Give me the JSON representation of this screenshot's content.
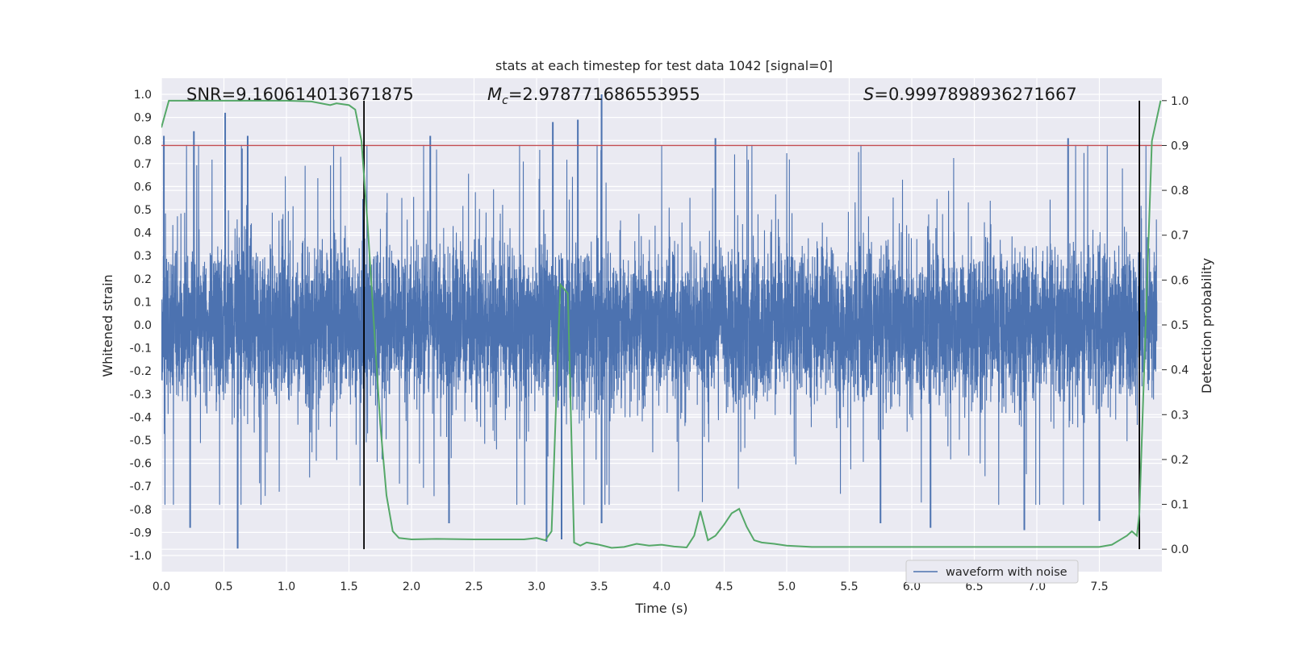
{
  "chart_data": {
    "type": "line",
    "title": "stats at each timestep for test data 1042 [signal=0]",
    "xlabel": "Time (s)",
    "ylabel_left": "Whitened strain",
    "ylabel_right": "Detection probability",
    "xlim": [
      0.0,
      8.0
    ],
    "ylim_left": [
      -1.07,
      1.07
    ],
    "ylim_right": [
      -0.05,
      1.05
    ],
    "x_ticks": [
      0.0,
      0.5,
      1.0,
      1.5,
      2.0,
      2.5,
      3.0,
      3.5,
      4.0,
      4.5,
      5.0,
      5.5,
      6.0,
      6.5,
      7.0,
      7.5
    ],
    "x_tick_labels": [
      "0.0",
      "0.5",
      "1.0",
      "1.5",
      "2.0",
      "2.5",
      "3.0",
      "3.5",
      "4.0",
      "4.5",
      "5.0",
      "5.5",
      "6.0",
      "6.5",
      "7.0",
      "7.5"
    ],
    "y_left_ticks": [
      1.0,
      0.9,
      0.8,
      0.7,
      0.6,
      0.5,
      0.4,
      0.3,
      0.2,
      0.1,
      0.0,
      -0.1,
      -0.2,
      -0.3,
      -0.4,
      -0.5,
      -0.6,
      -0.7,
      -0.8,
      -0.9,
      -1.0
    ],
    "y_left_tick_labels": [
      "1.0",
      "0.9",
      "0.8",
      "0.7",
      "0.6",
      "0.5",
      "0.4",
      "0.3",
      "0.2",
      "0.1",
      "0.0",
      "-0.1",
      "-0.2",
      "-0.3",
      "-0.4",
      "-0.5",
      "-0.6",
      "-0.7",
      "-0.8",
      "-0.9",
      "-1.0"
    ],
    "y_right_ticks": [
      1.0,
      0.9,
      0.8,
      0.7,
      0.6,
      0.5,
      0.4,
      0.3,
      0.2,
      0.1,
      0.0
    ],
    "y_right_tick_labels": [
      "1.0",
      "0.9",
      "0.8",
      "0.7",
      "0.6",
      "0.5",
      "0.4",
      "0.3",
      "0.2",
      "0.1",
      "0.0"
    ],
    "annotations": {
      "snr": "SNR=9.160614013671875",
      "mc": "=2.978771686553955",
      "mc_symbol": "M",
      "mc_subscript": "c",
      "s": "=0.9997898936271667",
      "s_symbol": "S"
    },
    "threshold": {
      "axis": "right",
      "value": 0.9,
      "color": "#c44e52"
    },
    "vlines": [
      1.62,
      7.82
    ],
    "vline_range_right": [
      0.0,
      1.0
    ],
    "legend": {
      "label": "waveform with noise",
      "location": "lower-right",
      "color": "#4c72b0"
    },
    "series": [
      {
        "name": "waveform with noise",
        "axis": "left",
        "color": "#4c72b0",
        "style": "dense-noise",
        "samples": 8000,
        "typical_range": [
          -0.4,
          0.4
        ],
        "spike_peaks": [
          {
            "x": 0.02,
            "y": 0.82
          },
          {
            "x": 0.26,
            "y": 0.84
          },
          {
            "x": 0.51,
            "y": 0.92
          },
          {
            "x": 0.69,
            "y": 0.82
          },
          {
            "x": 2.15,
            "y": 0.82
          },
          {
            "x": 3.13,
            "y": 0.88
          },
          {
            "x": 3.33,
            "y": 0.89
          },
          {
            "x": 3.52,
            "y": 1.0
          },
          {
            "x": 4.43,
            "y": 0.81
          },
          {
            "x": 7.25,
            "y": 0.81
          },
          {
            "x": 0.23,
            "y": -0.88
          },
          {
            "x": 0.61,
            "y": -0.97
          },
          {
            "x": 2.3,
            "y": -0.86
          },
          {
            "x": 3.08,
            "y": -0.94
          },
          {
            "x": 3.2,
            "y": -0.93
          },
          {
            "x": 3.52,
            "y": -0.86
          },
          {
            "x": 5.75,
            "y": -0.86
          },
          {
            "x": 6.15,
            "y": -0.88
          },
          {
            "x": 6.9,
            "y": -0.89
          },
          {
            "x": 7.5,
            "y": -0.85
          }
        ]
      },
      {
        "name": "detection probability",
        "axis": "right",
        "color": "#55a868",
        "x": [
          0.0,
          0.06,
          0.2,
          0.4,
          0.6,
          0.8,
          1.0,
          1.2,
          1.35,
          1.4,
          1.5,
          1.55,
          1.6,
          1.65,
          1.7,
          1.75,
          1.8,
          1.85,
          1.9,
          2.0,
          2.2,
          2.5,
          2.8,
          2.9,
          3.0,
          3.07,
          3.12,
          3.19,
          3.25,
          3.3,
          3.35,
          3.4,
          3.5,
          3.6,
          3.7,
          3.8,
          3.9,
          4.0,
          4.1,
          4.2,
          4.26,
          4.31,
          4.37,
          4.43,
          4.5,
          4.56,
          4.62,
          4.68,
          4.74,
          4.8,
          4.9,
          5.0,
          5.2,
          5.5,
          6.0,
          6.5,
          7.0,
          7.5,
          7.6,
          7.66,
          7.72,
          7.76,
          7.8,
          7.82,
          7.87,
          7.92,
          7.99
        ],
        "y": [
          0.94,
          1.0,
          1.0,
          1.0,
          1.0,
          1.0,
          1.0,
          0.998,
          0.99,
          0.994,
          0.99,
          0.98,
          0.91,
          0.72,
          0.5,
          0.28,
          0.12,
          0.04,
          0.025,
          0.022,
          0.023,
          0.022,
          0.022,
          0.022,
          0.025,
          0.02,
          0.04,
          0.59,
          0.57,
          0.015,
          0.008,
          0.015,
          0.01,
          0.003,
          0.005,
          0.012,
          0.008,
          0.01,
          0.006,
          0.004,
          0.03,
          0.085,
          0.02,
          0.03,
          0.055,
          0.08,
          0.09,
          0.05,
          0.02,
          0.015,
          0.012,
          0.008,
          0.005,
          0.005,
          0.005,
          0.005,
          0.005,
          0.005,
          0.01,
          0.02,
          0.03,
          0.04,
          0.03,
          0.08,
          0.5,
          0.91,
          1.0
        ]
      }
    ]
  }
}
